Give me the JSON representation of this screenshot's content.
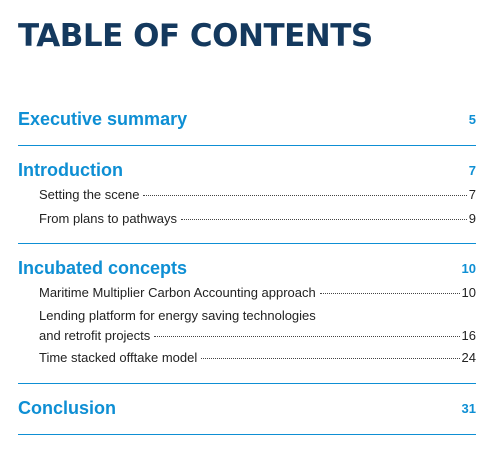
{
  "title": "TABLE OF CONTENTS",
  "sections": [
    {
      "title": "Executive summary",
      "page": "5",
      "entries": []
    },
    {
      "title": "Introduction",
      "page": "7",
      "entries": [
        {
          "lines": [
            "Setting the scene"
          ],
          "page": "7"
        },
        {
          "lines": [
            "From plans to pathways"
          ],
          "page": "9"
        }
      ]
    },
    {
      "title": "Incubated concepts",
      "page": "10",
      "entries": [
        {
          "lines": [
            "Maritime Multiplier Carbon Accounting approach"
          ],
          "page": "10"
        },
        {
          "lines": [
            "Lending platform for energy saving technologies",
            "and retrofit projects"
          ],
          "page": "16"
        },
        {
          "lines": [
            "Time stacked offtake model"
          ],
          "page": "24"
        }
      ]
    },
    {
      "title": "Conclusion",
      "page": "31",
      "entries": []
    }
  ],
  "colors": {
    "title": "#14395e",
    "accent": "#0e8fd4",
    "body_text": "#222222"
  }
}
